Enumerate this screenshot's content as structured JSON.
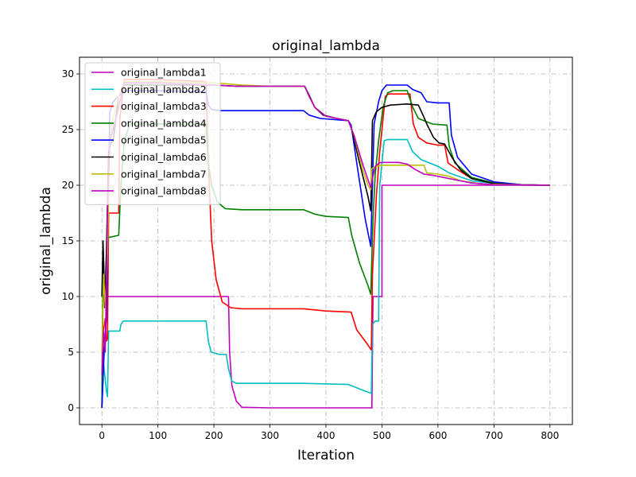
{
  "chart_data": {
    "type": "line",
    "title": "original_lambda",
    "xlabel": "Iteration",
    "ylabel": "original_lambda",
    "xlim": [
      -40,
      840
    ],
    "ylim": [
      -1.5,
      31.5
    ],
    "xticks": [
      0,
      100,
      200,
      300,
      400,
      500,
      600,
      700,
      800
    ],
    "yticks": [
      0,
      5,
      10,
      15,
      20,
      25,
      30
    ],
    "grid": true,
    "grid_style": "dashdot",
    "legend_position": "upper-left",
    "series": [
      {
        "name": "original_lambda1",
        "color": "#bf00bf",
        "points": [
          [
            0,
            0
          ],
          [
            2,
            10
          ],
          [
            5,
            10
          ],
          [
            100,
            10
          ],
          [
            200,
            10
          ],
          [
            226,
            10
          ],
          [
            228,
            5
          ],
          [
            232,
            2
          ],
          [
            240,
            0.6
          ],
          [
            250,
            0.05
          ],
          [
            300,
            0
          ],
          [
            400,
            0
          ],
          [
            482,
            0
          ],
          [
            484,
            10
          ],
          [
            486,
            10
          ],
          [
            500,
            10
          ],
          [
            500,
            20
          ],
          [
            800,
            20
          ]
        ]
      },
      {
        "name": "original_lambda2",
        "color": "#00bfbf",
        "points": [
          [
            0,
            0
          ],
          [
            3,
            4
          ],
          [
            8,
            1.5
          ],
          [
            10,
            1
          ],
          [
            12,
            6.9
          ],
          [
            20,
            6.9
          ],
          [
            32,
            6.9
          ],
          [
            34,
            7.5
          ],
          [
            38,
            7.8
          ],
          [
            100,
            7.8
          ],
          [
            186,
            7.8
          ],
          [
            190,
            6
          ],
          [
            195,
            5
          ],
          [
            210,
            4.8
          ],
          [
            222,
            4.8
          ],
          [
            226,
            3.5
          ],
          [
            232,
            2.4
          ],
          [
            240,
            2.2
          ],
          [
            300,
            2.2
          ],
          [
            360,
            2.2
          ],
          [
            400,
            2.15
          ],
          [
            440,
            2.1
          ],
          [
            450,
            1.9
          ],
          [
            470,
            1.5
          ],
          [
            481,
            1.3
          ],
          [
            483,
            7.5
          ],
          [
            488,
            7.8
          ],
          [
            494,
            7.8
          ],
          [
            496,
            20
          ],
          [
            500,
            22
          ],
          [
            504,
            24
          ],
          [
            510,
            24.1
          ],
          [
            545,
            24.1
          ],
          [
            555,
            23
          ],
          [
            570,
            22.3
          ],
          [
            600,
            21.7
          ],
          [
            620,
            21.1
          ],
          [
            660,
            20.4
          ],
          [
            720,
            20.05
          ],
          [
            800,
            20
          ]
        ]
      },
      {
        "name": "original_lambda3",
        "color": "#ff0000",
        "points": [
          [
            0,
            0
          ],
          [
            3,
            7
          ],
          [
            6,
            8
          ],
          [
            8,
            6
          ],
          [
            10,
            6.2
          ],
          [
            12,
            17.5
          ],
          [
            30,
            17.5
          ],
          [
            32,
            26
          ],
          [
            40,
            29.5
          ],
          [
            100,
            29.5
          ],
          [
            186,
            29.3
          ],
          [
            190,
            22
          ],
          [
            196,
            15
          ],
          [
            204,
            11.5
          ],
          [
            215,
            9.5
          ],
          [
            230,
            9
          ],
          [
            250,
            8.9
          ],
          [
            360,
            8.9
          ],
          [
            400,
            8.7
          ],
          [
            445,
            8.6
          ],
          [
            455,
            7
          ],
          [
            470,
            6
          ],
          [
            481,
            5.2
          ],
          [
            483,
            12
          ],
          [
            490,
            19
          ],
          [
            496,
            23
          ],
          [
            502,
            26
          ],
          [
            506,
            28
          ],
          [
            512,
            28.2
          ],
          [
            550,
            28.2
          ],
          [
            556,
            25.5
          ],
          [
            565,
            24.3
          ],
          [
            580,
            23.8
          ],
          [
            600,
            23.6
          ],
          [
            612,
            23.6
          ],
          [
            618,
            22
          ],
          [
            635,
            21.4
          ],
          [
            660,
            20.6
          ],
          [
            700,
            20.2
          ],
          [
            750,
            20.05
          ],
          [
            800,
            20
          ]
        ]
      },
      {
        "name": "original_lambda4",
        "color": "#008000",
        "points": [
          [
            0,
            0
          ],
          [
            2,
            15
          ],
          [
            5,
            10
          ],
          [
            8,
            11
          ],
          [
            11,
            15.3
          ],
          [
            30,
            15.5
          ],
          [
            34,
            20
          ],
          [
            40,
            24
          ],
          [
            50,
            25.5
          ],
          [
            186,
            25.5
          ],
          [
            190,
            22
          ],
          [
            196,
            20
          ],
          [
            206,
            18.5
          ],
          [
            220,
            17.9
          ],
          [
            250,
            17.8
          ],
          [
            360,
            17.8
          ],
          [
            380,
            17.4
          ],
          [
            400,
            17.2
          ],
          [
            440,
            17.1
          ],
          [
            446,
            15.5
          ],
          [
            460,
            13
          ],
          [
            475,
            11
          ],
          [
            480,
            10.2
          ],
          [
            484,
            17
          ],
          [
            488,
            21
          ],
          [
            494,
            24
          ],
          [
            502,
            27
          ],
          [
            510,
            28.3
          ],
          [
            520,
            28.5
          ],
          [
            545,
            28.5
          ],
          [
            555,
            27
          ],
          [
            565,
            26
          ],
          [
            590,
            25.5
          ],
          [
            616,
            25.4
          ],
          [
            620,
            23.5
          ],
          [
            630,
            22
          ],
          [
            660,
            20.7
          ],
          [
            700,
            20.2
          ],
          [
            750,
            20.05
          ],
          [
            800,
            20
          ]
        ]
      },
      {
        "name": "original_lambda5",
        "color": "#0000ff",
        "points": [
          [
            0,
            0
          ],
          [
            4,
            5
          ],
          [
            8,
            8
          ],
          [
            14,
            26.5
          ],
          [
            20,
            27.5
          ],
          [
            30,
            28
          ],
          [
            40,
            28.5
          ],
          [
            100,
            28.5
          ],
          [
            186,
            28.4
          ],
          [
            190,
            27.2
          ],
          [
            196,
            26.8
          ],
          [
            210,
            26.7
          ],
          [
            300,
            26.7
          ],
          [
            360,
            26.7
          ],
          [
            370,
            26.3
          ],
          [
            390,
            26
          ],
          [
            440,
            25.8
          ],
          [
            445,
            25.4
          ],
          [
            455,
            22
          ],
          [
            470,
            17
          ],
          [
            480,
            14.5
          ],
          [
            483,
            20
          ],
          [
            486,
            25.5
          ],
          [
            494,
            27.5
          ],
          [
            500,
            28.5
          ],
          [
            508,
            29
          ],
          [
            545,
            29
          ],
          [
            555,
            28.6
          ],
          [
            570,
            28.3
          ],
          [
            580,
            27.5
          ],
          [
            600,
            27.4
          ],
          [
            620,
            27.4
          ],
          [
            624,
            24.5
          ],
          [
            635,
            22.5
          ],
          [
            660,
            21
          ],
          [
            700,
            20.3
          ],
          [
            750,
            20.05
          ],
          [
            800,
            20
          ]
        ]
      },
      {
        "name": "original_lambda6",
        "color": "#000000",
        "points": [
          [
            0,
            10
          ],
          [
            2,
            15
          ],
          [
            5,
            9
          ],
          [
            8,
            14
          ],
          [
            12,
            23
          ],
          [
            16,
            23.8
          ],
          [
            20,
            24
          ],
          [
            30,
            28
          ],
          [
            40,
            29
          ],
          [
            100,
            29
          ],
          [
            200,
            29
          ],
          [
            240,
            28.9
          ],
          [
            300,
            28.9
          ],
          [
            362,
            28.9
          ],
          [
            370,
            28.1
          ],
          [
            380,
            27
          ],
          [
            395,
            26.3
          ],
          [
            420,
            26
          ],
          [
            440,
            25.8
          ],
          [
            446,
            25
          ],
          [
            460,
            22
          ],
          [
            475,
            19
          ],
          [
            480,
            17.7
          ],
          [
            483,
            25.8
          ],
          [
            490,
            26.6
          ],
          [
            500,
            27
          ],
          [
            515,
            27.2
          ],
          [
            545,
            27.3
          ],
          [
            565,
            27.2
          ],
          [
            575,
            26.1
          ],
          [
            580,
            25.5
          ],
          [
            592,
            24.3
          ],
          [
            602,
            23.8
          ],
          [
            612,
            23.7
          ],
          [
            625,
            22.5
          ],
          [
            640,
            21.4
          ],
          [
            660,
            20.6
          ],
          [
            700,
            20.15
          ],
          [
            750,
            20.02
          ],
          [
            800,
            20
          ]
        ]
      },
      {
        "name": "original_lambda7",
        "color": "#bfbf00",
        "points": [
          [
            0,
            5
          ],
          [
            3,
            12
          ],
          [
            6,
            9
          ],
          [
            10,
            14
          ],
          [
            14,
            24
          ],
          [
            20,
            26
          ],
          [
            30,
            28
          ],
          [
            40,
            29.3
          ],
          [
            100,
            29.3
          ],
          [
            200,
            29.2
          ],
          [
            250,
            29
          ],
          [
            300,
            28.9
          ],
          [
            362,
            28.9
          ],
          [
            370,
            28
          ],
          [
            380,
            27
          ],
          [
            400,
            26.2
          ],
          [
            420,
            26
          ],
          [
            440,
            25.8
          ],
          [
            450,
            24.5
          ],
          [
            465,
            21.5
          ],
          [
            475,
            20
          ],
          [
            480,
            19.6
          ],
          [
            482,
            21.5
          ],
          [
            490,
            21.7
          ],
          [
            500,
            21.8
          ],
          [
            545,
            21.8
          ],
          [
            575,
            21.8
          ],
          [
            580,
            21.1
          ],
          [
            600,
            21
          ],
          [
            620,
            20.8
          ],
          [
            640,
            20.4
          ],
          [
            680,
            20.1
          ],
          [
            800,
            20
          ]
        ]
      },
      {
        "name": "original_lambda8",
        "color": "#bf00bf",
        "points": [
          [
            0,
            3
          ],
          [
            3,
            7
          ],
          [
            6,
            5
          ],
          [
            10,
            18
          ],
          [
            14,
            24
          ],
          [
            20,
            25
          ],
          [
            30,
            27
          ],
          [
            40,
            29.2
          ],
          [
            100,
            29.2
          ],
          [
            200,
            29
          ],
          [
            240,
            28.9
          ],
          [
            300,
            28.9
          ],
          [
            362,
            28.9
          ],
          [
            370,
            28
          ],
          [
            380,
            27
          ],
          [
            400,
            26.2
          ],
          [
            420,
            26
          ],
          [
            440,
            25.8
          ],
          [
            450,
            24.5
          ],
          [
            465,
            22
          ],
          [
            475,
            20.5
          ],
          [
            480,
            19.8
          ],
          [
            484,
            20.8
          ],
          [
            488,
            21.7
          ],
          [
            495,
            22
          ],
          [
            500,
            22.05
          ],
          [
            530,
            22.05
          ],
          [
            545,
            21.9
          ],
          [
            560,
            21.4
          ],
          [
            575,
            21
          ],
          [
            590,
            20.9
          ],
          [
            610,
            20.7
          ],
          [
            620,
            20.6
          ],
          [
            660,
            20.2
          ],
          [
            700,
            20.05
          ],
          [
            800,
            20
          ]
        ]
      }
    ]
  }
}
